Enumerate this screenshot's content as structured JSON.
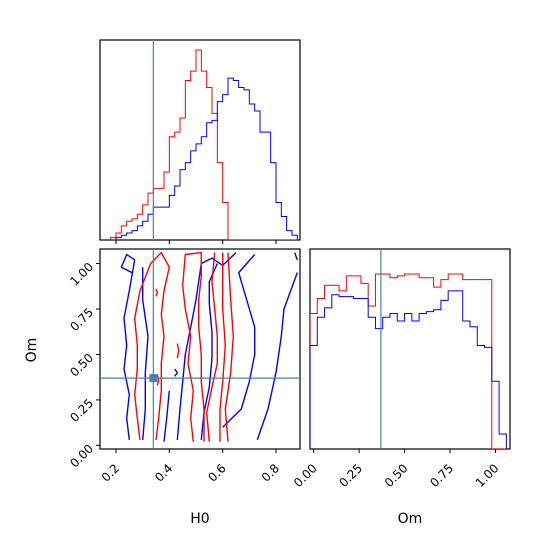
{
  "chart_data": {
    "type": "corner",
    "truth": {
      "H0": 0.34,
      "Om": 0.37
    },
    "axis_labels": {
      "x_left": "H0",
      "x_right": "Om",
      "y_left": "Om"
    },
    "h0_ticks": [
      "0.2",
      "0.4",
      "0.6",
      "0.8"
    ],
    "h0_tick_values": [
      0.2,
      0.4,
      0.6,
      0.8
    ],
    "om_ticks": [
      "0.00",
      "0.25",
      "0.50",
      "0.75",
      "1.00"
    ],
    "om_tick_values": [
      0.0,
      0.25,
      0.5,
      0.75,
      1.0
    ],
    "h0_range": [
      0.14,
      0.89
    ],
    "om_range": [
      -0.02,
      1.08
    ],
    "series": [
      {
        "color": "#ff0000"
      },
      {
        "color": "#0000ff"
      }
    ],
    "h0_histograms": {
      "bin_edges": [
        0.18,
        0.2,
        0.22,
        0.24,
        0.26,
        0.28,
        0.3,
        0.32,
        0.34,
        0.36,
        0.38,
        0.4,
        0.42,
        0.44,
        0.46,
        0.48,
        0.5,
        0.52,
        0.54,
        0.56,
        0.58,
        0.6,
        0.62,
        0.64,
        0.66,
        0.68,
        0.7,
        0.72,
        0.74,
        0.76,
        0.78,
        0.8,
        0.82,
        0.84,
        0.86,
        0.88
      ],
      "red": [
        1,
        3,
        6,
        8,
        9,
        11,
        15,
        20,
        22,
        22,
        29,
        44,
        46,
        52,
        68,
        72,
        81,
        72,
        65,
        54,
        33,
        16,
        0,
        0,
        0,
        0,
        0,
        0,
        0,
        0,
        0,
        0,
        0,
        0,
        0
      ],
      "blue": [
        0,
        1,
        2,
        3,
        4,
        6,
        8,
        11,
        14,
        14,
        14,
        19,
        23,
        30,
        33,
        38,
        41,
        44,
        50,
        51,
        59,
        62,
        69,
        68,
        65,
        64,
        58,
        55,
        46,
        46,
        33,
        16,
        10,
        4,
        2
      ]
    },
    "om_histograms": {
      "bin_edges": [
        -0.02,
        0.02,
        0.06,
        0.1,
        0.14,
        0.18,
        0.22,
        0.26,
        0.3,
        0.34,
        0.38,
        0.42,
        0.46,
        0.5,
        0.54,
        0.58,
        0.62,
        0.66,
        0.7,
        0.74,
        0.78,
        0.82,
        0.86,
        0.9,
        0.94,
        0.98,
        1.02,
        1.06
      ],
      "red": [
        72,
        80,
        87,
        87,
        84,
        92,
        92,
        88,
        76,
        93,
        93,
        91,
        92,
        93,
        93,
        91,
        91,
        86,
        90,
        93,
        93,
        90,
        90,
        90,
        90,
        0,
        0
      ],
      "blue": [
        55,
        70,
        75,
        82,
        81,
        81,
        80,
        80,
        70,
        64,
        70,
        72,
        68,
        72,
        68,
        72,
        73,
        74,
        79,
        84,
        84,
        68,
        65,
        55,
        54,
        36,
        8
      ]
    },
    "contours": {
      "red": [
        [
          [
            0.29,
            0.03
          ],
          [
            0.28,
            0.15
          ],
          [
            0.27,
            0.28
          ],
          [
            0.28,
            0.42
          ],
          [
            0.28,
            0.55
          ],
          [
            0.27,
            0.7
          ],
          [
            0.29,
            0.85
          ],
          [
            0.33,
            1.0
          ],
          [
            0.37,
            1.06
          ],
          [
            0.4,
            0.98
          ],
          [
            0.38,
            0.85
          ],
          [
            0.37,
            0.72
          ],
          [
            0.38,
            0.6
          ],
          [
            0.37,
            0.45
          ],
          [
            0.37,
            0.3
          ],
          [
            0.36,
            0.15
          ],
          [
            0.35,
            0.03
          ]
        ],
        [
          [
            0.49,
            0.02
          ],
          [
            0.48,
            0.15
          ],
          [
            0.49,
            0.3
          ],
          [
            0.47,
            0.45
          ],
          [
            0.48,
            0.6
          ],
          [
            0.46,
            0.75
          ],
          [
            0.45,
            0.88
          ],
          [
            0.46,
            1.05
          ],
          [
            0.52,
            1.06
          ],
          [
            0.52,
            0.93
          ],
          [
            0.51,
            0.8
          ],
          [
            0.51,
            0.65
          ],
          [
            0.52,
            0.5
          ],
          [
            0.52,
            0.35
          ],
          [
            0.53,
            0.2
          ],
          [
            0.53,
            0.02
          ]
        ],
        [
          [
            0.55,
            0.02
          ],
          [
            0.54,
            0.18
          ],
          [
            0.56,
            0.32
          ],
          [
            0.58,
            0.45
          ],
          [
            0.58,
            0.6
          ],
          [
            0.57,
            0.75
          ],
          [
            0.56,
            0.9
          ],
          [
            0.57,
            1.06
          ]
        ],
        [
          [
            0.62,
            0.02
          ],
          [
            0.61,
            0.2
          ],
          [
            0.63,
            0.4
          ],
          [
            0.64,
            0.6
          ],
          [
            0.63,
            0.8
          ],
          [
            0.62,
            1.06
          ]
        ],
        [
          [
            0.59,
            0.02
          ],
          [
            0.59,
            0.2
          ],
          [
            0.6,
            0.35
          ],
          [
            0.61,
            0.55
          ],
          [
            0.6,
            0.75
          ],
          [
            0.6,
            0.95
          ],
          [
            0.6,
            1.06
          ]
        ],
        [
          [
            0.355,
            0.33
          ],
          [
            0.36,
            0.36
          ],
          [
            0.355,
            0.39
          ]
        ],
        [
          [
            0.43,
            0.48
          ],
          [
            0.435,
            0.52
          ],
          [
            0.43,
            0.56
          ]
        ],
        [
          [
            0.35,
            0.82
          ],
          [
            0.355,
            0.84
          ],
          [
            0.35,
            0.86
          ]
        ]
      ],
      "blue": [
        [
          [
            0.25,
            0.03
          ],
          [
            0.24,
            0.15
          ],
          [
            0.25,
            0.28
          ],
          [
            0.23,
            0.42
          ],
          [
            0.24,
            0.55
          ],
          [
            0.23,
            0.7
          ],
          [
            0.25,
            0.85
          ],
          [
            0.27,
            1.02
          ],
          [
            0.24,
            1.05
          ],
          [
            0.22,
            0.98
          ],
          [
            0.26,
            0.95
          ]
        ],
        [
          [
            0.3,
            0.03
          ],
          [
            0.31,
            0.2
          ],
          [
            0.31,
            0.4
          ],
          [
            0.32,
            0.6
          ],
          [
            0.3,
            0.8
          ],
          [
            0.3,
            0.98
          ]
        ],
        [
          [
            0.43,
            0.03
          ],
          [
            0.44,
            0.2
          ],
          [
            0.45,
            0.35
          ],
          [
            0.46,
            0.5
          ],
          [
            0.48,
            0.65
          ],
          [
            0.5,
            0.8
          ],
          [
            0.52,
            1.0
          ],
          [
            0.56,
            1.03
          ],
          [
            0.6,
            0.99
          ],
          [
            0.65,
            1.06
          ]
        ],
        [
          [
            0.52,
            0.03
          ],
          [
            0.53,
            0.18
          ],
          [
            0.55,
            0.32
          ],
          [
            0.56,
            0.48
          ],
          [
            0.56,
            0.62
          ],
          [
            0.55,
            0.78
          ],
          [
            0.55,
            0.9
          ],
          [
            0.58,
            1.0
          ]
        ],
        [
          [
            0.6,
            0.1
          ],
          [
            0.67,
            0.2
          ],
          [
            0.7,
            0.35
          ],
          [
            0.72,
            0.5
          ],
          [
            0.72,
            0.65
          ],
          [
            0.69,
            0.8
          ],
          [
            0.66,
            0.95
          ],
          [
            0.72,
            1.05
          ]
        ],
        [
          [
            0.73,
            0.03
          ],
          [
            0.77,
            0.2
          ],
          [
            0.8,
            0.4
          ],
          [
            0.82,
            0.6
          ],
          [
            0.83,
            0.75
          ],
          [
            0.88,
            0.95
          ]
        ],
        [
          [
            0.42,
            0.38
          ],
          [
            0.43,
            0.4
          ],
          [
            0.42,
            0.42
          ]
        ],
        [
          [
            0.38,
            0.02
          ],
          [
            0.39,
            0.15
          ],
          [
            0.4,
            0.3
          ]
        ],
        [
          [
            0.87,
            1.06
          ],
          [
            0.88,
            1.02
          ]
        ]
      ]
    }
  }
}
